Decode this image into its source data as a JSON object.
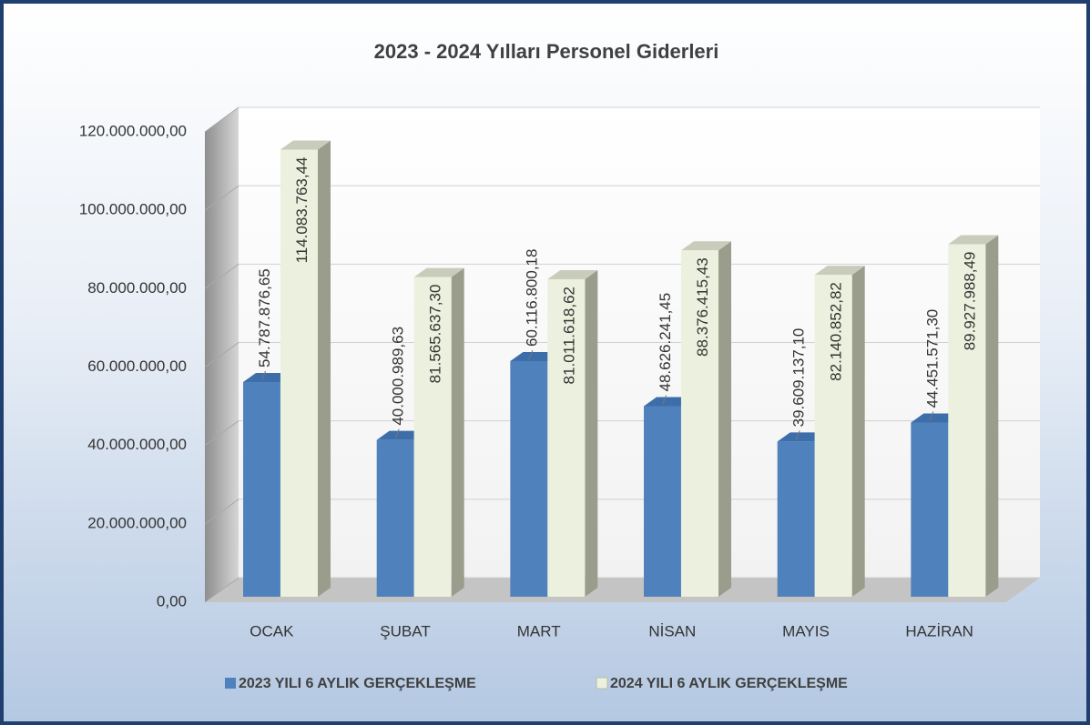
{
  "chart_data": {
    "type": "bar3d",
    "title": "2023 - 2024 Yılları Personel Giderleri",
    "categories": [
      "OCAK",
      "ŞUBAT",
      "MART",
      "NİSAN",
      "MAYIS",
      "HAZİRAN"
    ],
    "series": [
      {
        "name": "2023 YILI 6 AYLIK GERÇEKLEŞME",
        "color": "#4f81bd",
        "values": [
          54787876.65,
          40000989.63,
          60116800.18,
          48626241.45,
          39609137.1,
          44451571.3
        ],
        "value_labels": [
          "54.787.876,65",
          "40.000.989,63",
          "60.116.800,18",
          "48.626.241,45",
          "39.609.137,10",
          "44.451.571,30"
        ]
      },
      {
        "name": "2024 YILI 6 AYLIK GERÇEKLEŞME",
        "color": "#ebf1de",
        "values": [
          114083763.44,
          81565637.3,
          81011618.62,
          88376415.43,
          82140852.82,
          89927988.49
        ],
        "value_labels": [
          "114.083.763,44",
          "81.565.637,30",
          "81.011.618,62",
          "88.376.415,43",
          "82.140.852,82",
          "89.927.988,49"
        ]
      }
    ],
    "ylim": [
      0,
      120000000
    ],
    "yticks": [
      {
        "value": 0,
        "label": "0,00"
      },
      {
        "value": 20000000,
        "label": "20.000.000,00"
      },
      {
        "value": 40000000,
        "label": "40.000.000,00"
      },
      {
        "value": 60000000,
        "label": "60.000.000,00"
      },
      {
        "value": 80000000,
        "label": "80.000.000,00"
      },
      {
        "value": 100000000,
        "label": "100.000.000,00"
      },
      {
        "value": 120000000,
        "label": "120.000.000,00"
      }
    ],
    "grid": true,
    "legend": "bottom"
  }
}
